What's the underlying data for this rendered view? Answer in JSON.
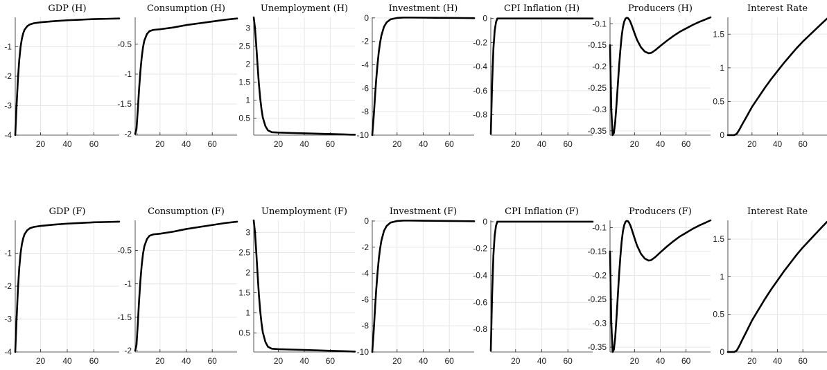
{
  "figure": {
    "background": "#ffffff",
    "line_color": "#000000",
    "grid_color": "#e6e6e6"
  },
  "chart_data": [
    {
      "type": "line",
      "title": "GDP (H)",
      "xlabel": "",
      "ylabel": "",
      "grid": true,
      "xlim": [
        1,
        79
      ],
      "ylim": [
        -4,
        0
      ],
      "xticks": [
        20,
        40,
        60
      ],
      "xtick_labels": [
        "20",
        "40",
        "60"
      ],
      "yticks": [
        -4,
        -3,
        -2,
        -1
      ],
      "ytick_labels": [
        "-4",
        "-3",
        "-2",
        "-1"
      ],
      "series": [
        {
          "x": [
            1,
            2,
            3,
            4,
            5,
            6,
            7,
            8,
            10,
            12,
            15,
            20,
            30,
            40,
            50,
            60,
            70,
            79
          ],
          "y": [
            -4.0,
            -3.0,
            -2.1,
            -1.45,
            -1.0,
            -0.72,
            -0.54,
            -0.42,
            -0.3,
            -0.24,
            -0.2,
            -0.17,
            -0.13,
            -0.1,
            -0.08,
            -0.06,
            -0.05,
            -0.04
          ]
        }
      ]
    },
    {
      "type": "line",
      "title": "Consumption (H)",
      "xlabel": "",
      "ylabel": "",
      "grid": true,
      "xlim": [
        1,
        79
      ],
      "ylim": [
        -2.02,
        -0.05
      ],
      "xticks": [
        20,
        40,
        60
      ],
      "xtick_labels": [
        "20",
        "40",
        "60"
      ],
      "yticks": [
        -2,
        -1.5,
        -1,
        -0.5
      ],
      "ytick_labels": [
        "-2",
        "-1.5",
        "-1",
        "-0.5"
      ],
      "series": [
        {
          "x": [
            1,
            2,
            3,
            4,
            5,
            6,
            7,
            8,
            10,
            12,
            15,
            20,
            30,
            40,
            50,
            60,
            70,
            79
          ],
          "y": [
            -2.0,
            -1.92,
            -1.6,
            -1.25,
            -0.95,
            -0.72,
            -0.55,
            -0.44,
            -0.33,
            -0.28,
            -0.26,
            -0.25,
            -0.22,
            -0.18,
            -0.15,
            -0.12,
            -0.09,
            -0.07
          ]
        }
      ]
    },
    {
      "type": "line",
      "title": "Unemployment (H)",
      "xlabel": "",
      "ylabel": "",
      "grid": true,
      "xlim": [
        1,
        79
      ],
      "ylim": [
        0.03,
        3.3
      ],
      "xticks": [
        20,
        40,
        60
      ],
      "xtick_labels": [
        "20",
        "40",
        "60"
      ],
      "yticks": [
        0.5,
        1,
        1.5,
        2,
        2.5,
        3
      ],
      "ytick_labels": [
        "0.5",
        "1",
        "1.5",
        "2",
        "2.5",
        "3"
      ],
      "series": [
        {
          "x": [
            1,
            2,
            3,
            4,
            5,
            6,
            7,
            8,
            10,
            12,
            15,
            20,
            30,
            40,
            50,
            60,
            70,
            79
          ],
          "y": [
            3.3,
            3.0,
            2.5,
            1.95,
            1.45,
            1.05,
            0.75,
            0.52,
            0.28,
            0.16,
            0.11,
            0.1,
            0.09,
            0.08,
            0.07,
            0.06,
            0.05,
            0.04
          ]
        }
      ]
    },
    {
      "type": "line",
      "title": "Investment (H)",
      "xlabel": "",
      "ylabel": "",
      "grid": true,
      "xlim": [
        1,
        79
      ],
      "ylim": [
        -10,
        0.05
      ],
      "xticks": [
        20,
        40,
        60
      ],
      "xtick_labels": [
        "20",
        "40",
        "60"
      ],
      "yticks": [
        -10,
        -8,
        -6,
        -4,
        -2,
        0
      ],
      "ytick_labels": [
        "-10",
        "-8",
        "-6",
        "-4",
        "-2",
        "0"
      ],
      "series": [
        {
          "x": [
            1,
            2,
            3,
            4,
            5,
            6,
            7,
            8,
            10,
            12,
            15,
            20,
            25,
            30,
            40,
            50,
            60,
            70,
            79
          ],
          "y": [
            -10.0,
            -8.6,
            -6.9,
            -5.3,
            -4.0,
            -2.9,
            -2.1,
            -1.5,
            -0.75,
            -0.38,
            -0.12,
            0.0,
            0.03,
            0.03,
            0.02,
            0.01,
            0.0,
            -0.01,
            -0.02
          ]
        }
      ]
    },
    {
      "type": "line",
      "title": "CPI Inflation (H)",
      "xlabel": "",
      "ylabel": "",
      "grid": true,
      "xlim": [
        1,
        79
      ],
      "ylim": [
        -0.97,
        0.01
      ],
      "xticks": [
        20,
        40,
        60
      ],
      "xtick_labels": [
        "20",
        "40",
        "60"
      ],
      "yticks": [
        -0.8,
        -0.6,
        -0.4,
        -0.2,
        0
      ],
      "ytick_labels": [
        "-0.8",
        "-0.6",
        "-0.4",
        "-0.2",
        "0"
      ],
      "series": [
        {
          "x": [
            1,
            2,
            3,
            4,
            5,
            6,
            7,
            8,
            10,
            20,
            40,
            60,
            79
          ],
          "y": [
            -0.96,
            -0.55,
            -0.25,
            -0.1,
            -0.03,
            0.0,
            0.0,
            0.0,
            0.0,
            0.0,
            0.0,
            0.0,
            0.0
          ]
        }
      ]
    },
    {
      "type": "line",
      "title": "Producers (H)",
      "xlabel": "",
      "ylabel": "",
      "grid": true,
      "xlim": [
        1,
        79
      ],
      "ylim": [
        -0.36,
        -0.085
      ],
      "xticks": [
        20,
        40,
        60
      ],
      "xtick_labels": [
        "20",
        "40",
        "60"
      ],
      "yticks": [
        -0.35,
        -0.3,
        -0.25,
        -0.2,
        -0.15,
        -0.1
      ],
      "ytick_labels": [
        "-0.35",
        "-0.3",
        "-0.25",
        "-0.2",
        "-0.15",
        "-0.1"
      ],
      "series": [
        {
          "x": [
            1,
            2,
            3,
            4,
            5,
            6,
            7,
            8,
            9,
            10,
            11,
            12,
            13,
            14,
            15,
            16,
            17,
            18,
            20,
            22,
            25,
            28,
            31,
            33,
            36,
            40,
            45,
            50,
            55,
            60,
            65,
            70,
            75,
            79
          ],
          "y": [
            -0.15,
            -0.3,
            -0.36,
            -0.355,
            -0.33,
            -0.29,
            -0.245,
            -0.2,
            -0.162,
            -0.13,
            -0.108,
            -0.095,
            -0.088,
            -0.086,
            -0.087,
            -0.091,
            -0.097,
            -0.105,
            -0.122,
            -0.138,
            -0.155,
            -0.165,
            -0.169,
            -0.168,
            -0.162,
            -0.152,
            -0.14,
            -0.129,
            -0.119,
            -0.111,
            -0.103,
            -0.096,
            -0.09,
            -0.085
          ]
        }
      ]
    },
    {
      "type": "line",
      "title": "Interest Rate",
      "xlabel": "",
      "ylabel": "",
      "grid": true,
      "xlim": [
        1,
        79
      ],
      "ylim": [
        0,
        1.75
      ],
      "xticks": [
        20,
        40,
        60
      ],
      "xtick_labels": [
        "20",
        "40",
        "60"
      ],
      "yticks": [
        0,
        0.5,
        1,
        1.5
      ],
      "ytick_labels": [
        "0",
        "0.5",
        "1",
        "1.5"
      ],
      "series": [
        {
          "x": [
            1,
            6,
            8,
            10,
            12,
            15,
            20,
            25,
            30,
            35,
            40,
            45,
            50,
            55,
            60,
            65,
            70,
            75,
            79
          ],
          "y": [
            0.0,
            0.0,
            0.02,
            0.08,
            0.15,
            0.25,
            0.42,
            0.56,
            0.7,
            0.83,
            0.95,
            1.07,
            1.18,
            1.29,
            1.39,
            1.48,
            1.57,
            1.66,
            1.73
          ]
        }
      ]
    },
    {
      "type": "line",
      "title": "GDP (F)",
      "xlabel": "",
      "ylabel": "",
      "grid": true,
      "xlim": [
        1,
        79
      ],
      "ylim": [
        -4,
        0
      ],
      "xticks": [
        20,
        40,
        60
      ],
      "xtick_labels": [
        "20",
        "40",
        "60"
      ],
      "yticks": [
        -4,
        -3,
        -2,
        -1
      ],
      "ytick_labels": [
        "-4",
        "-3",
        "-2",
        "-1"
      ],
      "series": [
        {
          "x": [
            1,
            2,
            3,
            4,
            5,
            6,
            7,
            8,
            10,
            12,
            15,
            20,
            30,
            40,
            50,
            60,
            70,
            79
          ],
          "y": [
            -4.0,
            -3.0,
            -2.1,
            -1.45,
            -1.0,
            -0.72,
            -0.54,
            -0.42,
            -0.3,
            -0.24,
            -0.2,
            -0.17,
            -0.13,
            -0.1,
            -0.08,
            -0.06,
            -0.05,
            -0.04
          ]
        }
      ]
    },
    {
      "type": "line",
      "title": "Consumption (F)",
      "xlabel": "",
      "ylabel": "",
      "grid": true,
      "xlim": [
        1,
        79
      ],
      "ylim": [
        -2.02,
        -0.05
      ],
      "xticks": [
        20,
        40,
        60
      ],
      "xtick_labels": [
        "20",
        "40",
        "60"
      ],
      "yticks": [
        -2,
        -1.5,
        -1,
        -0.5
      ],
      "ytick_labels": [
        "-2",
        "-1.5",
        "-1",
        "-0.5"
      ],
      "series": [
        {
          "x": [
            1,
            2,
            3,
            4,
            5,
            6,
            7,
            8,
            10,
            12,
            15,
            20,
            30,
            40,
            50,
            60,
            70,
            79
          ],
          "y": [
            -2.0,
            -1.92,
            -1.6,
            -1.25,
            -0.95,
            -0.72,
            -0.55,
            -0.44,
            -0.33,
            -0.28,
            -0.26,
            -0.25,
            -0.22,
            -0.18,
            -0.15,
            -0.12,
            -0.09,
            -0.07
          ]
        }
      ]
    },
    {
      "type": "line",
      "title": "Unemployment (F)",
      "xlabel": "",
      "ylabel": "",
      "grid": true,
      "xlim": [
        1,
        79
      ],
      "ylim": [
        0.03,
        3.3
      ],
      "xticks": [
        20,
        40,
        60
      ],
      "xtick_labels": [
        "20",
        "40",
        "60"
      ],
      "yticks": [
        0.5,
        1,
        1.5,
        2,
        2.5,
        3
      ],
      "ytick_labels": [
        "0.5",
        "1",
        "1.5",
        "2",
        "2.5",
        "3"
      ],
      "series": [
        {
          "x": [
            1,
            2,
            3,
            4,
            5,
            6,
            7,
            8,
            10,
            12,
            15,
            20,
            30,
            40,
            50,
            60,
            70,
            79
          ],
          "y": [
            3.3,
            3.0,
            2.5,
            1.95,
            1.45,
            1.05,
            0.75,
            0.52,
            0.28,
            0.16,
            0.11,
            0.1,
            0.09,
            0.08,
            0.07,
            0.06,
            0.05,
            0.04
          ]
        }
      ]
    },
    {
      "type": "line",
      "title": "Investment (F)",
      "xlabel": "",
      "ylabel": "",
      "grid": true,
      "xlim": [
        1,
        79
      ],
      "ylim": [
        -10,
        0.05
      ],
      "xticks": [
        20,
        40,
        60
      ],
      "xtick_labels": [
        "20",
        "40",
        "60"
      ],
      "yticks": [
        -10,
        -8,
        -6,
        -4,
        -2,
        0
      ],
      "ytick_labels": [
        "-10",
        "-8",
        "-6",
        "-4",
        "-2",
        "0"
      ],
      "series": [
        {
          "x": [
            1,
            2,
            3,
            4,
            5,
            6,
            7,
            8,
            10,
            12,
            15,
            20,
            25,
            30,
            40,
            50,
            60,
            70,
            79
          ],
          "y": [
            -10.0,
            -8.6,
            -6.9,
            -5.3,
            -4.0,
            -2.9,
            -2.1,
            -1.5,
            -0.75,
            -0.38,
            -0.12,
            0.0,
            0.03,
            0.03,
            0.02,
            0.01,
            0.0,
            -0.01,
            -0.02
          ]
        }
      ]
    },
    {
      "type": "line",
      "title": "CPI Inflation (F)",
      "xlabel": "",
      "ylabel": "",
      "grid": true,
      "xlim": [
        1,
        79
      ],
      "ylim": [
        -0.97,
        0.01
      ],
      "xticks": [
        20,
        40,
        60
      ],
      "xtick_labels": [
        "20",
        "40",
        "60"
      ],
      "yticks": [
        -0.8,
        -0.6,
        -0.4,
        -0.2,
        0
      ],
      "ytick_labels": [
        "-0.8",
        "-0.6",
        "-0.4",
        "-0.2",
        "0"
      ],
      "series": [
        {
          "x": [
            1,
            2,
            3,
            4,
            5,
            6,
            7,
            8,
            10,
            20,
            40,
            60,
            79
          ],
          "y": [
            -0.96,
            -0.55,
            -0.25,
            -0.1,
            -0.03,
            0.0,
            0.0,
            0.0,
            0.0,
            0.0,
            0.0,
            0.0,
            0.0
          ]
        }
      ]
    },
    {
      "type": "line",
      "title": "Producers (F)",
      "xlabel": "",
      "ylabel": "",
      "grid": true,
      "xlim": [
        1,
        79
      ],
      "ylim": [
        -0.36,
        -0.085
      ],
      "xticks": [
        20,
        40,
        60
      ],
      "xtick_labels": [
        "20",
        "40",
        "60"
      ],
      "yticks": [
        -0.35,
        -0.3,
        -0.25,
        -0.2,
        -0.15,
        -0.1
      ],
      "ytick_labels": [
        "-0.35",
        "-0.3",
        "-0.25",
        "-0.2",
        "-0.15",
        "-0.1"
      ],
      "series": [
        {
          "x": [
            1,
            2,
            3,
            4,
            5,
            6,
            7,
            8,
            9,
            10,
            11,
            12,
            13,
            14,
            15,
            16,
            17,
            18,
            20,
            22,
            25,
            28,
            31,
            33,
            36,
            40,
            45,
            50,
            55,
            60,
            65,
            70,
            75,
            79
          ],
          "y": [
            -0.15,
            -0.3,
            -0.36,
            -0.355,
            -0.33,
            -0.29,
            -0.245,
            -0.2,
            -0.162,
            -0.13,
            -0.108,
            -0.095,
            -0.088,
            -0.086,
            -0.087,
            -0.091,
            -0.097,
            -0.105,
            -0.122,
            -0.138,
            -0.155,
            -0.165,
            -0.169,
            -0.168,
            -0.162,
            -0.152,
            -0.14,
            -0.129,
            -0.119,
            -0.111,
            -0.103,
            -0.096,
            -0.09,
            -0.085
          ]
        }
      ]
    },
    {
      "type": "line",
      "title": "Interest Rate",
      "xlabel": "",
      "ylabel": "",
      "grid": true,
      "xlim": [
        1,
        79
      ],
      "ylim": [
        0,
        1.75
      ],
      "xticks": [
        20,
        40,
        60
      ],
      "xtick_labels": [
        "20",
        "40",
        "60"
      ],
      "yticks": [
        0,
        0.5,
        1,
        1.5
      ],
      "ytick_labels": [
        "0",
        "0.5",
        "1",
        "1.5"
      ],
      "series": [
        {
          "x": [
            1,
            6,
            8,
            10,
            12,
            15,
            20,
            25,
            30,
            35,
            40,
            45,
            50,
            55,
            60,
            65,
            70,
            75,
            79
          ],
          "y": [
            0.0,
            0.0,
            0.02,
            0.08,
            0.15,
            0.25,
            0.42,
            0.56,
            0.7,
            0.83,
            0.95,
            1.07,
            1.18,
            1.29,
            1.39,
            1.48,
            1.57,
            1.66,
            1.73
          ]
        }
      ]
    }
  ]
}
